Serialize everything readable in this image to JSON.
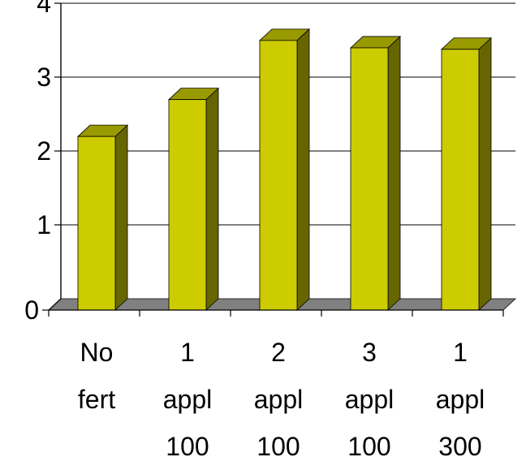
{
  "chart_data": {
    "type": "bar",
    "title": "",
    "xlabel": "",
    "ylabel": "",
    "categories": [
      [
        "No",
        "fert"
      ],
      [
        "1",
        "appl",
        "100"
      ],
      [
        "2",
        "appl",
        "100"
      ],
      [
        "3",
        "appl",
        "100"
      ],
      [
        "1",
        "appl",
        "300"
      ]
    ],
    "values": [
      2.35,
      2.85,
      3.65,
      3.55,
      3.53
    ],
    "ylim": [
      0,
      4
    ],
    "yticks": [
      "0",
      "1",
      "2",
      "3",
      "4"
    ],
    "grid": true,
    "legend": "none",
    "style": "3d-column"
  },
  "colors": {
    "bar_front": "#cccc00",
    "bar_side": "#666600",
    "bar_top": "#999900",
    "floor": "#808080",
    "background": "#ffffff"
  }
}
